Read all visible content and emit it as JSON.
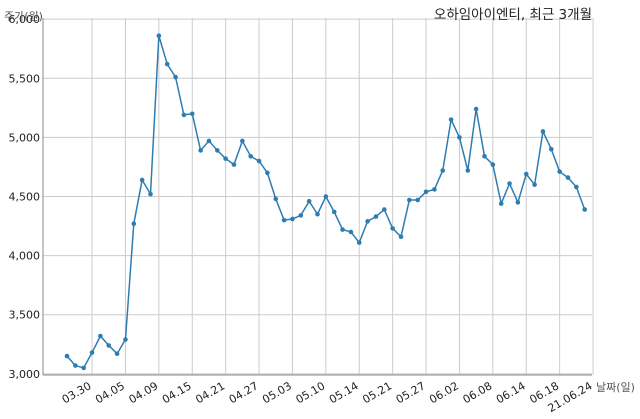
{
  "chart_data": {
    "type": "line",
    "title": "오하임아이엔티, 최근 3개월",
    "ylabel": "주가(원)",
    "xlabel": "날짜(일)",
    "ylim": [
      2990,
      6010
    ],
    "yticks": [
      3000,
      3500,
      4000,
      4500,
      5000,
      5500,
      6000
    ],
    "ytick_labels": [
      "3,000",
      "3,500",
      "4,000",
      "4,500",
      "5,000",
      "5,500",
      "6,000"
    ],
    "xtick_labels": [
      "03.30",
      "04.05",
      "04.09",
      "04.15",
      "04.21",
      "04.27",
      "05.03",
      "05.10",
      "05.14",
      "05.21",
      "05.27",
      "06.02",
      "06.08",
      "06.14",
      "06.18",
      "21.06.24"
    ],
    "xtick_index": [
      3,
      7,
      11,
      15,
      19,
      23,
      27,
      31,
      35,
      39,
      43,
      47,
      51,
      55,
      59,
      63
    ],
    "grid": true,
    "color": "#2e7db0",
    "series": [
      {
        "values": [
          3150,
          3070,
          3050,
          3180,
          3320,
          3240,
          3170,
          3290,
          4270,
          4640,
          4520,
          5860,
          5620,
          5510,
          5190,
          5200,
          4890,
          4970,
          4890,
          4820,
          4770,
          4970,
          4840,
          4800,
          4700,
          4480,
          4300,
          4310,
          4340,
          4460,
          4350,
          4500,
          4370,
          4220,
          4200,
          4110,
          4290,
          4330,
          4390,
          4230,
          4160,
          4470,
          4470,
          4540,
          4560,
          4720,
          5150,
          5000,
          4720,
          5240,
          4840,
          4770,
          4440,
          4610,
          4450,
          4690,
          4600,
          5050,
          4900,
          4710,
          4660,
          4580,
          4390
        ]
      }
    ]
  }
}
